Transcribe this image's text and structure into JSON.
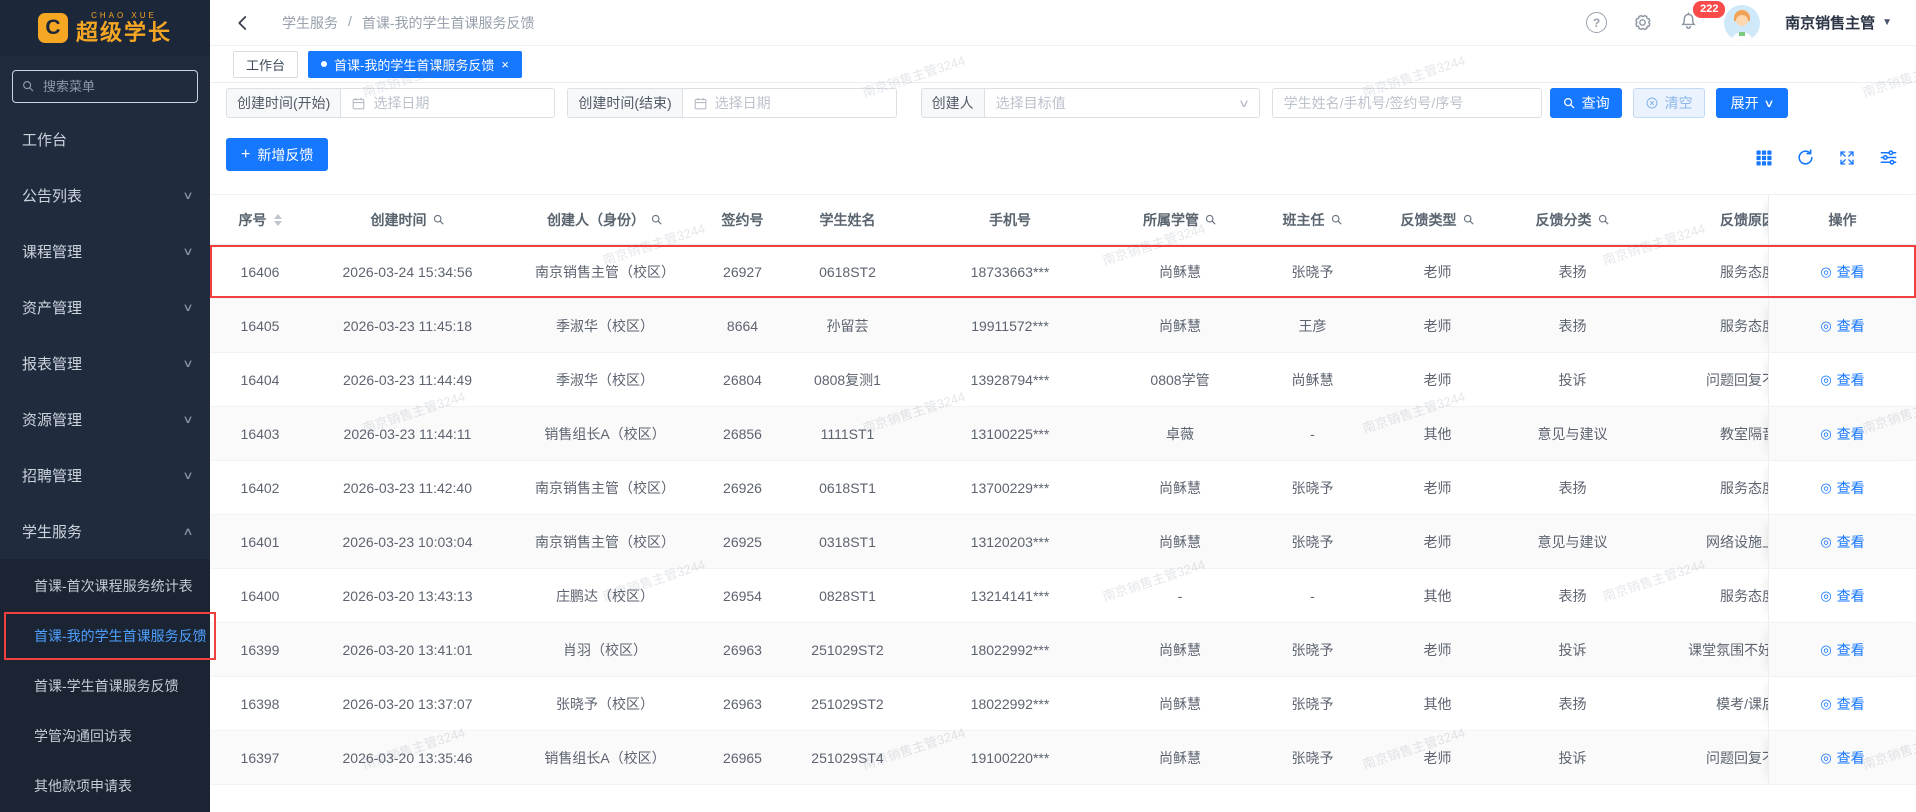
{
  "brand": {
    "badge": "C",
    "sub": "CHAO XUE",
    "name": "超级学长"
  },
  "sidebar": {
    "search_placeholder": "搜索菜单",
    "items": [
      {
        "label": "工作台"
      },
      {
        "label": "公告列表",
        "chevron": "down"
      },
      {
        "label": "课程管理",
        "chevron": "down"
      },
      {
        "label": "资产管理",
        "chevron": "down"
      },
      {
        "label": "报表管理",
        "chevron": "down"
      },
      {
        "label": "资源管理",
        "chevron": "down"
      },
      {
        "label": "招聘管理",
        "chevron": "down"
      },
      {
        "label": "学生服务",
        "chevron": "up",
        "expanded": true
      }
    ],
    "subitems": [
      {
        "label": "首课-首次课程服务统计表"
      },
      {
        "label": "首课-我的学生首课服务反馈",
        "selected": true,
        "highlighted": true
      },
      {
        "label": "首课-学生首课服务反馈"
      },
      {
        "label": "学管沟通回访表"
      },
      {
        "label": "其他款项申请表"
      }
    ]
  },
  "topbar": {
    "breadcrumb": {
      "section": "学生服务",
      "separator": "/",
      "page": "首课-我的学生首课服务反馈"
    },
    "notification_count": "222",
    "user_name": "南京销售主管"
  },
  "tabs": [
    {
      "label": "工作台"
    },
    {
      "label": "首课-我的学生首课服务反馈",
      "active": true,
      "closable": true
    }
  ],
  "filters": {
    "start_label": "创建时间(开始)",
    "start_placeholder": "选择日期",
    "end_label": "创建时间(结束)",
    "end_placeholder": "选择日期",
    "creator_label": "创建人",
    "creator_placeholder": "选择目标值",
    "keyword_placeholder": "学生姓名/手机号/签约号/序号",
    "search_label": "查询",
    "clear_label": "清空",
    "expand_label": "展开"
  },
  "toolbar": {
    "add_label": "新增反馈"
  },
  "table": {
    "columns": [
      {
        "key": "seq",
        "label": "序号",
        "sortable": true
      },
      {
        "key": "created",
        "label": "创建时间",
        "searchable": true
      },
      {
        "key": "creator",
        "label": "创建人（身份）",
        "searchable": true
      },
      {
        "key": "contract",
        "label": "签约号"
      },
      {
        "key": "student",
        "label": "学生姓名"
      },
      {
        "key": "phone",
        "label": "手机号"
      },
      {
        "key": "manager",
        "label": "所属学管",
        "searchable": true
      },
      {
        "key": "teacher",
        "label": "班主任",
        "searchable": true
      },
      {
        "key": "type",
        "label": "反馈类型",
        "searchable": true
      },
      {
        "key": "category",
        "label": "反馈分类",
        "searchable": true
      },
      {
        "key": "reason",
        "label": "反馈原因"
      },
      {
        "key": "action",
        "label": "操作"
      }
    ],
    "view_label": "查看",
    "view_icon": "◎",
    "rows": [
      {
        "seq": "16406",
        "created": "2026-03-24 15:34:56",
        "creator": "南京销售主管（校区）",
        "contract": "26927",
        "student": "0618ST2",
        "phone": "18733663***",
        "manager": "尚稣慧",
        "teacher": "张晓予",
        "type": "老师",
        "category": "表扬",
        "reason": "服务态度",
        "highlighted": true
      },
      {
        "seq": "16405",
        "created": "2026-03-23 11:45:18",
        "creator": "季淑华（校区）",
        "contract": "8664",
        "student": "孙留芸",
        "phone": "19911572***",
        "manager": "尚稣慧",
        "teacher": "王彦",
        "type": "老师",
        "category": "表扬",
        "reason": "服务态度"
      },
      {
        "seq": "16404",
        "created": "2026-03-23 11:44:49",
        "creator": "季淑华（校区）",
        "contract": "26804",
        "student": "0808复测1",
        "phone": "13928794***",
        "manager": "0808学管",
        "teacher": "尚稣慧",
        "type": "老师",
        "category": "投诉",
        "reason": "问题回复不"
      },
      {
        "seq": "16403",
        "created": "2026-03-23 11:44:11",
        "creator": "销售组长A（校区）",
        "contract": "26856",
        "student": "1111ST1",
        "phone": "13100225***",
        "manager": "卓薇",
        "teacher": "-",
        "type": "其他",
        "category": "意见与建议",
        "reason": "教室隔音"
      },
      {
        "seq": "16402",
        "created": "2026-03-23 11:42:40",
        "creator": "南京销售主管（校区）",
        "contract": "26926",
        "student": "0618ST1",
        "phone": "13700229***",
        "manager": "尚稣慧",
        "teacher": "张晓予",
        "type": "老师",
        "category": "表扬",
        "reason": "服务态度"
      },
      {
        "seq": "16401",
        "created": "2026-03-23 10:03:04",
        "creator": "南京销售主管（校区）",
        "contract": "26925",
        "student": "0318ST1",
        "phone": "13120203***",
        "manager": "尚稣慧",
        "teacher": "张晓予",
        "type": "老师",
        "category": "意见与建议",
        "reason": "网络设施上"
      },
      {
        "seq": "16400",
        "created": "2026-03-20 13:43:13",
        "creator": "庄鹏达（校区）",
        "contract": "26954",
        "student": "0828ST1",
        "phone": "13214141***",
        "manager": "-",
        "teacher": "-",
        "type": "其他",
        "category": "表扬",
        "reason": "服务态度"
      },
      {
        "seq": "16399",
        "created": "2026-03-20 13:41:01",
        "creator": "肖羽（校区）",
        "contract": "26963",
        "student": "251029ST2",
        "phone": "18022992***",
        "manager": "尚稣慧",
        "teacher": "张晓予",
        "type": "老师",
        "category": "投诉",
        "reason": "课堂氛围不好/"
      },
      {
        "seq": "16398",
        "created": "2026-03-20 13:37:07",
        "creator": "张晓予（校区）",
        "contract": "26963",
        "student": "251029ST2",
        "phone": "18022992***",
        "manager": "尚稣慧",
        "teacher": "张晓予",
        "type": "其他",
        "category": "表扬",
        "reason": "模考/课后"
      },
      {
        "seq": "16397",
        "created": "2026-03-20 13:35:46",
        "creator": "销售组长A（校区）",
        "contract": "26965",
        "student": "251029ST4",
        "phone": "19100220***",
        "manager": "尚稣慧",
        "teacher": "张晓予",
        "type": "老师",
        "category": "投诉",
        "reason": "问题回复不"
      }
    ]
  },
  "watermark": {
    "text": "南京销售主管3244"
  },
  "icons": {
    "help": "circle-question",
    "settings": "gear",
    "notification": "bell",
    "grid": "grid-3x3",
    "refresh": "circular-arrow",
    "fullscreen": "expand-arrows",
    "column_settings": "sliders",
    "calendar": "calendar",
    "search": "magnifier",
    "clear": "circle-x",
    "view": "◎",
    "close": "×",
    "dot": "●"
  },
  "colors": {
    "accent": "#1677ff",
    "sidebar_bg": "#202c3e",
    "submenu_bg": "#1a2433",
    "logo_orange": "#f5a623",
    "annotation_red": "#f24040",
    "badge_red": "#fa4b4b"
  }
}
